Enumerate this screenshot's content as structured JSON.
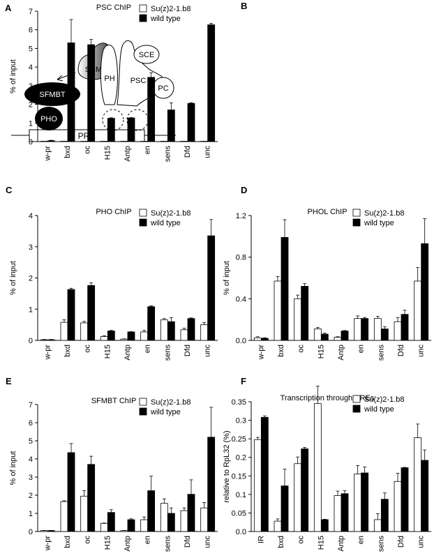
{
  "diagram": {
    "panel_label": "A",
    "labels": {
      "scm": "SCM",
      "sfmbt": "SFMBT",
      "pho": "PHO",
      "ph": "PH",
      "psc": "PSC",
      "sce": "SCE",
      "pc": "PC",
      "pre": "PRE"
    }
  },
  "chart_data": [
    {
      "panel": "B",
      "type": "bar",
      "title": "PSC ChIP",
      "ylabel": "% of input",
      "xlabel": "",
      "categories": [
        "w-pr",
        "bxd",
        "oc",
        "H15",
        "Antp",
        "en",
        "sens",
        "Dfd",
        "unc"
      ],
      "ylim": [
        0,
        7
      ],
      "yticks": [
        0,
        1,
        2,
        3,
        4,
        5,
        6,
        7
      ],
      "ytick_labels": [
        "0",
        "1",
        "2",
        "3",
        "4",
        "5",
        "6",
        "7"
      ],
      "series": [
        {
          "name": "Su(z)2-1.b8",
          "color": "#ffffff",
          "values": [
            0.02,
            0.02,
            0.02,
            0.02,
            0.02,
            0.02,
            0.02,
            0.02,
            0.02
          ],
          "errors": [
            0,
            0,
            0,
            0,
            0,
            0,
            0,
            0,
            0
          ]
        },
        {
          "name": "wild type",
          "color": "#000000",
          "values": [
            0.05,
            5.3,
            5.2,
            1.25,
            1.27,
            3.45,
            1.7,
            2.05,
            6.27
          ],
          "errors": [
            0.02,
            1.25,
            0.28,
            0.03,
            0.02,
            0.25,
            0.38,
            0.04,
            0.08
          ]
        }
      ],
      "legend_position": "top-right",
      "grid": false
    },
    {
      "panel": "C",
      "type": "bar",
      "title": "PHO ChIP",
      "ylabel": "% of input",
      "xlabel": "",
      "categories": [
        "w-pr",
        "bxd",
        "oc",
        "H15",
        "Antp",
        "en",
        "sens",
        "Dfd",
        "unc"
      ],
      "ylim": [
        0,
        4
      ],
      "yticks": [
        0,
        1,
        2,
        3,
        4
      ],
      "ytick_labels": [
        "0",
        "1",
        "2",
        "3",
        "4"
      ],
      "series": [
        {
          "name": "Su(z)2-1.b8",
          "color": "#ffffff",
          "values": [
            0.02,
            0.58,
            0.56,
            0.12,
            0.04,
            0.27,
            0.66,
            0.34,
            0.5
          ],
          "errors": [
            0.01,
            0.08,
            0.05,
            0.03,
            0.01,
            0.05,
            0.04,
            0.05,
            0.07
          ]
        },
        {
          "name": "wild type",
          "color": "#000000",
          "values": [
            0.02,
            1.63,
            1.76,
            0.3,
            0.27,
            1.08,
            0.6,
            0.7,
            3.35
          ],
          "errors": [
            0.01,
            0.04,
            0.08,
            0.02,
            0.01,
            0.03,
            0.13,
            0.02,
            0.52
          ]
        }
      ],
      "legend_position": "top-right",
      "grid": false
    },
    {
      "panel": "D",
      "type": "bar",
      "title": "PHOL ChIP",
      "ylabel": "% of input",
      "xlabel": "",
      "categories": [
        "w-pr",
        "bxd",
        "oc",
        "H15",
        "Antp",
        "en",
        "sens",
        "Dfd",
        "unc"
      ],
      "ylim": [
        0,
        1.2
      ],
      "yticks": [
        0,
        0.4,
        0.8,
        1.2
      ],
      "ytick_labels": [
        "0.0",
        "0.4",
        "0.8",
        "1.2"
      ],
      "series": [
        {
          "name": "Su(z)2-1.b8",
          "color": "#ffffff",
          "values": [
            0.025,
            0.57,
            0.4,
            0.11,
            0.03,
            0.21,
            0.21,
            0.18,
            0.57
          ],
          "errors": [
            0.01,
            0.045,
            0.035,
            0.015,
            0.005,
            0.025,
            0.02,
            0.04,
            0.13
          ]
        },
        {
          "name": "wild type",
          "color": "#000000",
          "values": [
            0.02,
            0.99,
            0.52,
            0.06,
            0.09,
            0.21,
            0.11,
            0.25,
            0.93
          ],
          "errors": [
            0.005,
            0.17,
            0.025,
            0.01,
            0.005,
            0.01,
            0.02,
            0.04,
            0.24
          ]
        }
      ],
      "legend_position": "top-right",
      "grid": false
    },
    {
      "panel": "E",
      "type": "bar",
      "title": "SFMBT ChIP",
      "ylabel": "% of input",
      "xlabel": "",
      "categories": [
        "w-pr",
        "bxd",
        "oc",
        "H15",
        "Antp",
        "en",
        "sens",
        "Dfd",
        "unc"
      ],
      "ylim": [
        0,
        7
      ],
      "yticks": [
        0,
        1,
        2,
        3,
        4,
        5,
        6,
        7
      ],
      "ytick_labels": [
        "0",
        "1",
        "2",
        "3",
        "4",
        "5",
        "6",
        "7"
      ],
      "series": [
        {
          "name": "Su(z)2-1.b8",
          "color": "#ffffff",
          "values": [
            0.05,
            1.65,
            1.95,
            0.45,
            0.05,
            0.65,
            1.55,
            1.15,
            1.3
          ],
          "errors": [
            0.01,
            0.05,
            0.3,
            0.02,
            0.01,
            0.15,
            0.25,
            0.15,
            0.3
          ]
        },
        {
          "name": "wild type",
          "color": "#000000",
          "values": [
            0.05,
            4.35,
            3.7,
            1.05,
            0.65,
            2.25,
            1.0,
            2.05,
            5.2
          ],
          "errors": [
            0.01,
            0.5,
            0.45,
            0.15,
            0.05,
            0.8,
            0.3,
            0.8,
            1.65
          ]
        }
      ],
      "legend_position": "top-right",
      "grid": false
    },
    {
      "panel": "F",
      "type": "bar",
      "title": "Transcription through PREs",
      "ylabel": "relative to RpL32 (%)",
      "xlabel": "",
      "categories": [
        "IR",
        "bxd",
        "oc",
        "H15",
        "Antp",
        "en",
        "sens",
        "Dfd",
        "unc"
      ],
      "ylim": [
        0,
        0.35
      ],
      "yticks": [
        0,
        0.05,
        0.1,
        0.15,
        0.2,
        0.25,
        0.3,
        0.35
      ],
      "ytick_labels": [
        "0.0",
        "0.05",
        "0.1",
        "0.15",
        "0.2",
        "0.25",
        "0.3",
        "0.35"
      ],
      "series": [
        {
          "name": "Su(z)2-1.b8",
          "color": "#ffffff",
          "values": [
            0.248,
            0.028,
            0.183,
            0.345,
            0.097,
            0.155,
            0.032,
            0.135,
            0.253
          ],
          "errors": [
            0.006,
            0.006,
            0.018,
            0.047,
            0.012,
            0.023,
            0.016,
            0.022,
            0.037
          ]
        },
        {
          "name": "wild type",
          "color": "#000000",
          "values": [
            0.308,
            0.123,
            0.223,
            0.032,
            0.102,
            0.158,
            0.087,
            0.172,
            0.192
          ],
          "errors": [
            0.004,
            0.045,
            0.004,
            0.001,
            0.008,
            0.016,
            0.017,
            0.001,
            0.028
          ]
        }
      ],
      "legend_position": "top-right",
      "grid": false
    }
  ]
}
